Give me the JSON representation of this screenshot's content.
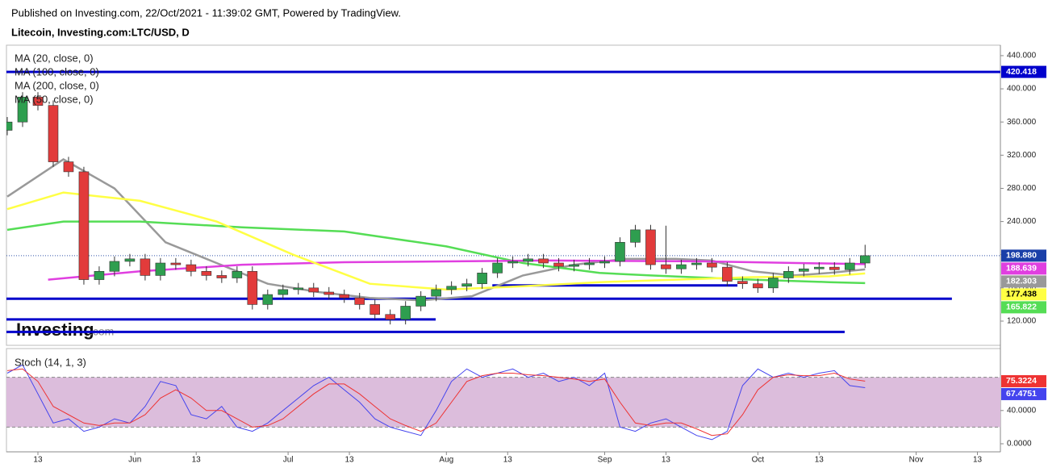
{
  "header": {
    "published": "Published on Investing.com, 22/Oct/2021 - 11:39:02 GMT, Powered by TradingView.",
    "title": "Litecoin, Investing.com:LTC/USD, D",
    "watermark": "Investing",
    "watermark_suffix": ".com"
  },
  "chart_data": [
    {
      "type": "candlestick",
      "xlim": [
        -6.16,
        188.5
      ],
      "ylim": [
        90.8,
        452.6
      ],
      "xticks": [
        {
          "value": 0,
          "label": "13"
        },
        {
          "value": 19,
          "label": "Jun"
        },
        {
          "value": 31,
          "label": "13"
        },
        {
          "value": 49,
          "label": "Jul"
        },
        {
          "value": 61,
          "label": "13"
        },
        {
          "value": 80,
          "label": "Aug"
        },
        {
          "value": 92,
          "label": "13"
        },
        {
          "value": 111,
          "label": "Sep"
        },
        {
          "value": 123,
          "label": "13"
        },
        {
          "value": 141,
          "label": "Oct"
        },
        {
          "value": 153,
          "label": "13"
        },
        {
          "value": 172,
          "label": "Nov"
        },
        {
          "value": 184,
          "label": "13"
        }
      ],
      "yticks": [
        {
          "value": 120,
          "label": "120.000"
        },
        {
          "value": 160,
          "label": "160.000"
        },
        {
          "value": 200,
          "label": "200.000"
        },
        {
          "value": 240,
          "label": "240.000"
        },
        {
          "value": 280,
          "label": "280.000"
        },
        {
          "value": 320,
          "label": "320.000"
        },
        {
          "value": 360,
          "label": "360.000"
        },
        {
          "value": 400,
          "label": "400.000"
        },
        {
          "value": 440,
          "label": "440.000"
        }
      ],
      "up_color": "#2e9e4f",
      "down_color": "#e23b3b",
      "candles": {
        "x": [
          -6,
          -3,
          0,
          3,
          6,
          9,
          12,
          15,
          18,
          21,
          24,
          27,
          30,
          33,
          36,
          39,
          42,
          45,
          48,
          51,
          54,
          57,
          60,
          63,
          66,
          69,
          72,
          75,
          78,
          81,
          84,
          87,
          90,
          93,
          96,
          99,
          102,
          105,
          108,
          111,
          114,
          117,
          120,
          123,
          126,
          129,
          132,
          135,
          138,
          141,
          144,
          147,
          150,
          153,
          156,
          159,
          162
        ],
        "open": [
          350,
          360,
          390,
          380,
          312,
          300,
          170,
          180,
          192,
          195,
          175,
          190,
          188,
          180,
          175,
          172,
          180,
          140,
          152,
          158,
          160,
          155,
          152,
          148,
          140,
          128,
          122,
          138,
          150,
          158,
          162,
          165,
          178,
          190,
          192,
          195,
          190,
          186,
          188,
          190,
          192,
          215,
          230,
          188,
          183,
          188,
          190,
          185,
          168,
          165,
          160,
          172,
          180,
          183,
          185,
          182,
          190
        ],
        "high": [
          366,
          396,
          396,
          386,
          318,
          306,
          186,
          198,
          201,
          201,
          196,
          196,
          194,
          186,
          181,
          186,
          186,
          158,
          164,
          166,
          166,
          161,
          158,
          154,
          146,
          134,
          144,
          156,
          164,
          168,
          171,
          184,
          196,
          198,
          201,
          201,
          196,
          194,
          196,
          198,
          221,
          236,
          236,
          235,
          194,
          196,
          196,
          191,
          174,
          171,
          178,
          186,
          189,
          191,
          191,
          196,
          212
        ],
        "low": [
          344,
          354,
          374,
          306,
          294,
          164,
          164,
          174,
          186,
          169,
          169,
          182,
          174,
          169,
          166,
          166,
          134,
          134,
          146,
          152,
          149,
          146,
          142,
          134,
          122,
          116,
          116,
          132,
          144,
          152,
          156,
          159,
          172,
          184,
          186,
          184,
          180,
          180,
          182,
          184,
          186,
          209,
          182,
          177,
          177,
          182,
          179,
          162,
          159,
          154,
          154,
          166,
          174,
          177,
          176,
          176,
          184
        ],
        "close": [
          360,
          390,
          380,
          312,
          300,
          170,
          180,
          192,
          195,
          175,
          190,
          188,
          180,
          175,
          172,
          180,
          140,
          152,
          158,
          160,
          155,
          152,
          148,
          140,
          128,
          122,
          138,
          150,
          158,
          162,
          165,
          178,
          190,
          192,
          195,
          190,
          186,
          188,
          190,
          192,
          215,
          230,
          188,
          183,
          188,
          190,
          185,
          168,
          165,
          160,
          172,
          180,
          183,
          185,
          182,
          190,
          198.88
        ]
      },
      "current_price": {
        "value": 198.88,
        "label": "198.880"
      },
      "series": [
        {
          "name": "MA (20, close, 0)",
          "color": "#999999",
          "x": [
            -6,
            5,
            15,
            25,
            35,
            45,
            55,
            65,
            75,
            85,
            95,
            105,
            115,
            125,
            132,
            140,
            148,
            155,
            162
          ],
          "values": [
            270,
            315,
            280,
            215,
            190,
            165,
            155,
            148,
            145,
            150,
            175,
            188,
            195,
            195,
            193,
            180,
            175,
            178,
            182.303
          ]
        },
        {
          "name": "MA (100, close, 0)",
          "color": "#55dd55",
          "x": [
            -6,
            5,
            20,
            40,
            60,
            80,
            95,
            110,
            120,
            140,
            155,
            162
          ],
          "values": [
            230,
            240,
            240,
            233,
            228,
            210,
            190,
            178,
            175,
            170,
            167,
            165.822
          ]
        },
        {
          "name": "MA (200, close, 0)",
          "color": "#e03fe0",
          "x": [
            2,
            20,
            40,
            60,
            100,
            130,
            162
          ],
          "values": [
            170,
            180,
            188,
            191,
            193,
            192,
            188.639
          ]
        },
        {
          "name": "MA (50, close, 0)",
          "color": "#ffff44",
          "x": [
            -6,
            5,
            20,
            35,
            50,
            65,
            80,
            95,
            110,
            125,
            140,
            155,
            162
          ],
          "values": [
            255,
            275,
            265,
            240,
            200,
            165,
            158,
            162,
            167,
            170,
            173,
            174,
            177.438
          ]
        }
      ],
      "levels": [
        {
          "value": 420.418,
          "x": [
            -6.16,
            188.5
          ],
          "color": "#0000cc"
        },
        {
          "value": 147,
          "x": [
            -6.16,
            179
          ],
          "color": "#0000cc"
        },
        {
          "value": 122,
          "x": [
            -6.16,
            77.9
          ],
          "color": "#0000cc"
        },
        {
          "value": 107,
          "x": [
            -6.16,
            158
          ],
          "color": "#0000cc"
        },
        {
          "value": 163,
          "x": [
            89,
            137
          ],
          "color": "#0000cc"
        }
      ]
    },
    {
      "type": "line",
      "legend": "Stoch (14, 1, 3)",
      "xlim": [
        -6.16,
        188.5
      ],
      "ylim": [
        -9.7,
        114.6
      ],
      "yticks": [
        {
          "value": 0,
          "label": "0.0000"
        },
        {
          "value": 40,
          "label": "40.0000"
        }
      ],
      "band": [
        20,
        80
      ],
      "band_color": "#dcbddc",
      "series": [
        {
          "color": "#4444ee",
          "x": [
            -6,
            -3,
            0,
            3,
            6,
            9,
            12,
            15,
            18,
            21,
            24,
            27,
            30,
            33,
            36,
            39,
            42,
            45,
            48,
            51,
            54,
            57,
            60,
            63,
            66,
            69,
            72,
            75,
            78,
            81,
            84,
            87,
            90,
            93,
            96,
            99,
            102,
            105,
            108,
            111,
            114,
            117,
            120,
            123,
            126,
            129,
            132,
            135,
            138,
            141,
            144,
            147,
            150,
            153,
            156,
            159,
            162
          ],
          "values": [
            85,
            95,
            60,
            25,
            30,
            15,
            20,
            30,
            25,
            45,
            75,
            70,
            35,
            30,
            45,
            20,
            15,
            25,
            40,
            55,
            70,
            80,
            65,
            50,
            30,
            20,
            15,
            10,
            40,
            75,
            90,
            80,
            85,
            90,
            80,
            85,
            75,
            80,
            70,
            85,
            20,
            15,
            25,
            30,
            20,
            10,
            5,
            15,
            70,
            90,
            80,
            85,
            80,
            85,
            88,
            70,
            67.4751
          ]
        },
        {
          "color": "#ee3333",
          "x": [
            -6,
            -3,
            0,
            3,
            6,
            9,
            12,
            15,
            18,
            21,
            24,
            27,
            30,
            33,
            36,
            39,
            42,
            45,
            48,
            51,
            54,
            57,
            60,
            63,
            66,
            69,
            72,
            75,
            78,
            81,
            84,
            87,
            90,
            93,
            96,
            99,
            102,
            105,
            108,
            111,
            114,
            117,
            120,
            123,
            126,
            129,
            132,
            135,
            138,
            141,
            144,
            147,
            150,
            153,
            156,
            159,
            162
          ],
          "values": [
            88,
            90,
            75,
            45,
            35,
            25,
            22,
            25,
            25,
            35,
            55,
            65,
            55,
            40,
            40,
            30,
            20,
            22,
            30,
            45,
            60,
            72,
            72,
            60,
            45,
            30,
            22,
            15,
            25,
            50,
            75,
            82,
            85,
            85,
            83,
            82,
            80,
            78,
            75,
            78,
            50,
            25,
            22,
            25,
            25,
            18,
            10,
            12,
            35,
            65,
            80,
            83,
            82,
            82,
            85,
            78,
            75.3224
          ]
        }
      ]
    }
  ]
}
